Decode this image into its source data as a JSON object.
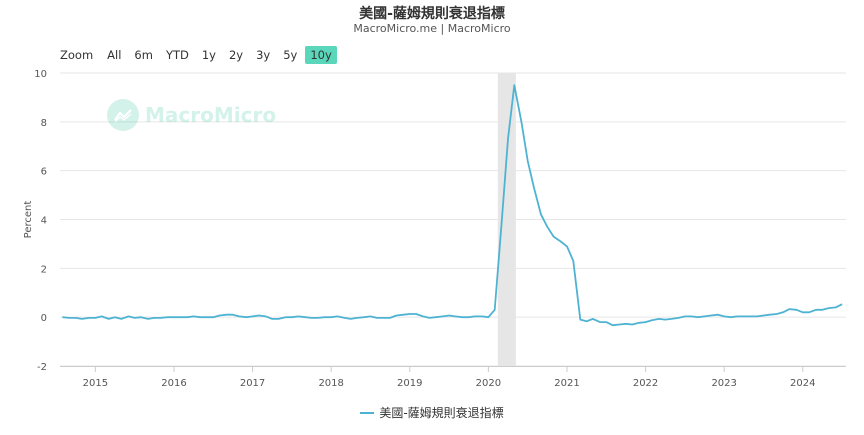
{
  "header": {
    "title": "美國-薩姆規則衰退指標",
    "subtitle": "MacroMicro.me | MacroMicro"
  },
  "zoom": {
    "label": "Zoom",
    "buttons": [
      "All",
      "6m",
      "YTD",
      "1y",
      "2y",
      "3y",
      "5y",
      "10y"
    ],
    "active": "10y"
  },
  "watermark": {
    "text": "MacroMicro"
  },
  "colors": {
    "line": "#4eb3d3",
    "band": "#e6e6e6",
    "accent": "#5ad6ba",
    "grid": "#e6e6e6"
  },
  "chart_data": {
    "type": "line",
    "title": "美國-薩姆規則衰退指標",
    "subtitle": "MacroMicro.me | MacroMicro",
    "ylabel": "Percent",
    "xlabel": "",
    "ylim": [
      -2,
      10
    ],
    "yticks": [
      -2,
      0,
      2,
      4,
      6,
      8,
      10
    ],
    "xlim": [
      2014.55,
      2024.55
    ],
    "xticks": [
      2015,
      2016,
      2017,
      2018,
      2019,
      2020,
      2021,
      2022,
      2023,
      2024
    ],
    "grid": "horizontal",
    "legend_position": "bottom",
    "recession_band": [
      2020.12,
      2020.35
    ],
    "series": [
      {
        "name": "美國-薩姆規則衰退指標",
        "x": [
          2014.58,
          2014.67,
          2014.75,
          2014.83,
          2014.92,
          2015.0,
          2015.08,
          2015.17,
          2015.25,
          2015.33,
          2015.42,
          2015.5,
          2015.58,
          2015.67,
          2015.75,
          2015.83,
          2015.92,
          2016.0,
          2016.08,
          2016.17,
          2016.25,
          2016.33,
          2016.42,
          2016.5,
          2016.58,
          2016.67,
          2016.75,
          2016.83,
          2016.92,
          2017.0,
          2017.08,
          2017.17,
          2017.25,
          2017.33,
          2017.42,
          2017.5,
          2017.58,
          2017.67,
          2017.75,
          2017.83,
          2017.92,
          2018.0,
          2018.08,
          2018.17,
          2018.25,
          2018.33,
          2018.42,
          2018.5,
          2018.58,
          2018.67,
          2018.75,
          2018.83,
          2018.92,
          2019.0,
          2019.08,
          2019.17,
          2019.25,
          2019.33,
          2019.42,
          2019.5,
          2019.58,
          2019.67,
          2019.75,
          2019.83,
          2019.92,
          2020.0,
          2020.08,
          2020.17,
          2020.25,
          2020.33,
          2020.42,
          2020.5,
          2020.58,
          2020.67,
          2020.75,
          2020.83,
          2020.92,
          2021.0,
          2021.08,
          2021.17,
          2021.25,
          2021.33,
          2021.42,
          2021.5,
          2021.58,
          2021.67,
          2021.75,
          2021.83,
          2021.92,
          2022.0,
          2022.08,
          2022.17,
          2022.25,
          2022.33,
          2022.42,
          2022.5,
          2022.58,
          2022.67,
          2022.75,
          2022.83,
          2022.92,
          2023.0,
          2023.08,
          2023.17,
          2023.25,
          2023.33,
          2023.42,
          2023.5,
          2023.58,
          2023.67,
          2023.75,
          2023.83,
          2023.92,
          2024.0,
          2024.08,
          2024.17,
          2024.25,
          2024.33,
          2024.42,
          2024.5
        ],
        "y": [
          0.0,
          -0.03,
          -0.03,
          -0.07,
          -0.03,
          -0.03,
          0.03,
          -0.07,
          0.0,
          -0.07,
          0.03,
          -0.03,
          0.0,
          -0.07,
          -0.03,
          -0.03,
          0.0,
          0.0,
          0.0,
          0.0,
          0.03,
          0.0,
          0.0,
          0.0,
          0.07,
          0.1,
          0.1,
          0.03,
          0.0,
          0.03,
          0.07,
          0.03,
          -0.07,
          -0.07,
          0.0,
          0.0,
          0.03,
          0.0,
          -0.03,
          -0.03,
          0.0,
          0.0,
          0.03,
          -0.03,
          -0.07,
          -0.03,
          0.0,
          0.03,
          -0.03,
          -0.03,
          -0.03,
          0.07,
          0.1,
          0.13,
          0.13,
          0.03,
          -0.03,
          0.0,
          0.03,
          0.07,
          0.03,
          0.0,
          0.0,
          0.03,
          0.03,
          0.0,
          0.3,
          3.9,
          7.3,
          9.5,
          8.0,
          6.4,
          5.3,
          4.2,
          3.7,
          3.3,
          3.1,
          2.9,
          2.3,
          -0.1,
          -0.17,
          -0.07,
          -0.2,
          -0.2,
          -0.33,
          -0.3,
          -0.27,
          -0.3,
          -0.23,
          -0.2,
          -0.13,
          -0.07,
          -0.1,
          -0.07,
          -0.03,
          0.03,
          0.03,
          0.0,
          0.03,
          0.07,
          0.1,
          0.03,
          0.0,
          0.03,
          0.03,
          0.03,
          0.03,
          0.07,
          0.1,
          0.13,
          0.2,
          0.33,
          0.3,
          0.2,
          0.2,
          0.3,
          0.3,
          0.37,
          0.4,
          0.53
        ]
      }
    ]
  }
}
